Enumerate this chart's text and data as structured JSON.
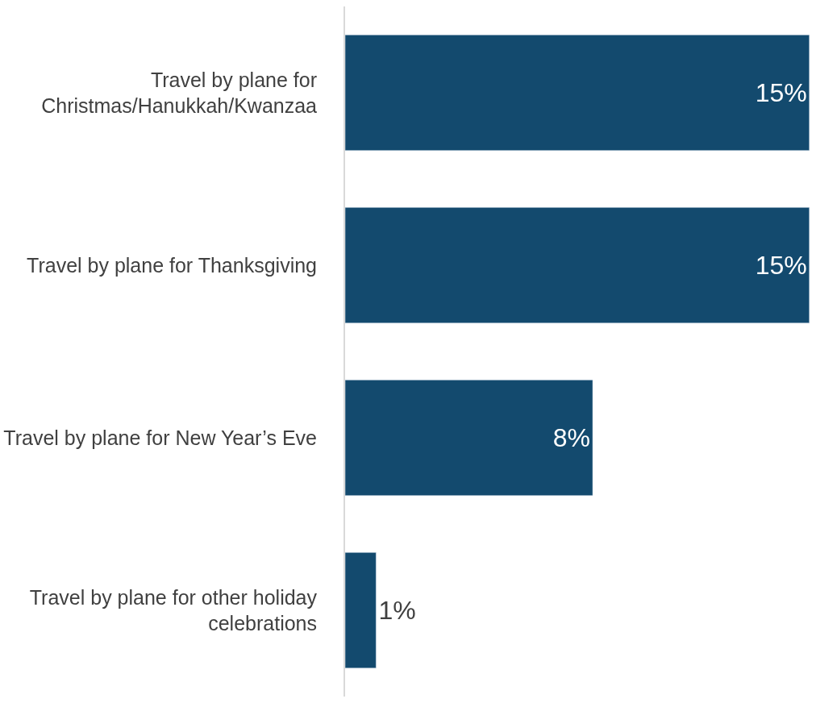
{
  "chart_data": {
    "type": "bar",
    "orientation": "horizontal",
    "categories": [
      "Travel by plane for Christmas/Hanukkah/Kwanzaa",
      "Travel by plane for Thanksgiving",
      "Travel by plane for New Year’s Eve",
      "Travel by plane for other holiday celebrations"
    ],
    "values": [
      15,
      15,
      8,
      1
    ],
    "value_labels": [
      "15%",
      "15%",
      "8%",
      "1%"
    ],
    "color": "#134a6e",
    "tick_labels": "y"
  }
}
